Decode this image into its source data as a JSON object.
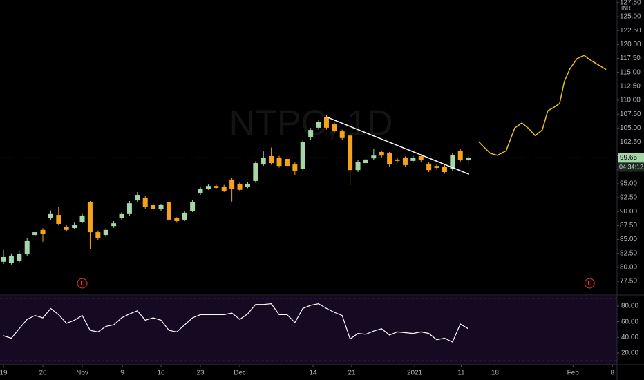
{
  "chart_data": [
    {
      "type": "candlestick",
      "watermark": "NTPC, 1D",
      "currency": "INR",
      "up_color": "#a5d6a7",
      "down_color": "#f7a21b",
      "open": [
        81.0,
        80.85,
        81.1,
        82.35,
        85.8,
        86.7,
        88.8,
        89.4,
        87.3,
        87.05,
        88.15,
        91.65,
        86.3,
        85.8,
        87.4,
        88.8,
        89.55,
        92.0,
        92.5,
        91.25,
        90.4,
        91.75,
        88.8,
        88.55,
        90.15,
        93.25,
        94.1,
        94.6,
        94.5,
        95.75,
        95.0,
        94.5,
        95.5,
        98.45,
        99.95,
        99.7,
        99.45,
        98.45,
        97.7,
        103.4,
        105.05,
        107.0,
        105.65,
        104.4,
        103.65,
        97.45,
        98.7,
        99.55,
        100.7,
        100.45,
        99.35,
        99.6,
        99.1,
        99.95,
        98.6,
        98.2,
        98.1,
        97.6,
        100.95,
        99.2
      ],
      "high": [
        83.1,
        82.5,
        83.0,
        85.2,
        86.6,
        87.0,
        90.2,
        90.8,
        87.6,
        88.0,
        89.6,
        91.9,
        86.6,
        87.0,
        88.3,
        89.9,
        91.9,
        93.5,
        92.8,
        91.5,
        91.4,
        92.0,
        89.0,
        90.0,
        92.1,
        94.4,
        95.0,
        94.9,
        94.8,
        96.0,
        95.3,
        95.3,
        99.0,
        100.8,
        101.5,
        100.0,
        99.8,
        98.8,
        102.8,
        105.0,
        106.5,
        107.3,
        106.0,
        104.7,
        103.9,
        99.3,
        99.6,
        101.2,
        100.9,
        100.7,
        99.6,
        99.9,
        100.0,
        100.3,
        98.9,
        98.5,
        98.4,
        100.5,
        101.3,
        99.9
      ],
      "low": [
        80.6,
        80.5,
        80.9,
        82.1,
        85.5,
        84.6,
        88.5,
        87.5,
        86.4,
        86.8,
        87.9,
        83.3,
        84.9,
        85.5,
        87.1,
        88.5,
        89.3,
        91.7,
        90.5,
        90.1,
        90.1,
        88.3,
        88.0,
        88.3,
        89.9,
        93.0,
        93.9,
        94.0,
        93.5,
        91.8,
        93.6,
        94.2,
        95.2,
        98.2,
        98.4,
        97.9,
        97.9,
        96.6,
        97.4,
        102.9,
        104.7,
        104.7,
        104.1,
        102.9,
        94.75,
        97.1,
        98.4,
        99.2,
        99.7,
        98.1,
        98.8,
        98.0,
        98.8,
        98.9,
        97.1,
        97.5,
        96.8,
        97.3,
        98.9,
        98.5
      ],
      "close": [
        81.85,
        82.1,
        82.45,
        84.7,
        86.3,
        86.05,
        89.55,
        87.8,
        86.7,
        87.65,
        89.3,
        86.3,
        85.2,
        86.7,
        87.9,
        89.55,
        91.5,
        93.0,
        90.8,
        90.4,
        91.15,
        88.55,
        88.3,
        89.8,
        91.75,
        94.0,
        94.6,
        94.25,
        93.75,
        94.1,
        93.9,
        95.0,
        98.7,
        99.6,
        98.7,
        98.2,
        98.2,
        97.35,
        102.45,
        104.65,
        106.15,
        105.05,
        104.4,
        103.2,
        97.45,
        98.95,
        99.35,
        100.05,
        100.05,
        98.45,
        99.1,
        98.35,
        99.7,
        99.2,
        97.45,
        97.85,
        97.1,
        100.2,
        99.2,
        99.65
      ],
      "last_price": 99.65,
      "countdown": "04:34:12",
      "xlim": [
        -0.44,
        77.89
      ],
      "xticks": [
        {
          "value": 0,
          "label": "19"
        },
        {
          "value": 5,
          "label": "26"
        },
        {
          "value": 10,
          "label": "Nov"
        },
        {
          "value": 15.1,
          "label": "9"
        },
        {
          "value": 20,
          "label": "16"
        },
        {
          "value": 25,
          "label": "23"
        },
        {
          "value": 30,
          "label": "Dec"
        },
        {
          "value": 39.3,
          "label": "14"
        },
        {
          "value": 44.2,
          "label": "21"
        },
        {
          "value": 52.2,
          "label": "2021"
        },
        {
          "value": 58.1,
          "label": "11"
        },
        {
          "value": 62.4,
          "label": "18"
        },
        {
          "value": 72.3,
          "label": "Feb"
        },
        {
          "value": 77.3,
          "label": "8"
        }
      ],
      "ylim": [
        75.27,
        127.98
      ],
      "yticks": [
        {
          "value": 77.5,
          "label": "77.50"
        },
        {
          "value": 80,
          "label": "80.00"
        },
        {
          "value": 82.5,
          "label": "82.50"
        },
        {
          "value": 85,
          "label": "85.00"
        },
        {
          "value": 87.5,
          "label": "87.50"
        },
        {
          "value": 90,
          "label": "90.00"
        },
        {
          "value": 92.5,
          "label": "92.50"
        },
        {
          "value": 95,
          "label": "95.00"
        },
        {
          "value": 97.5,
          "label": "97.50"
        },
        {
          "value": 100,
          "label": "100.00"
        },
        {
          "value": 102.5,
          "label": "102.50"
        },
        {
          "value": 105,
          "label": "105.00"
        },
        {
          "value": 107.5,
          "label": "107.50"
        },
        {
          "value": 110,
          "label": "110.00"
        },
        {
          "value": 112.5,
          "label": "112.50"
        },
        {
          "value": 115,
          "label": "115.00"
        },
        {
          "value": 117.5,
          "label": "117.50"
        },
        {
          "value": 120,
          "label": "120.00"
        },
        {
          "value": 122.5,
          "label": "122.50"
        },
        {
          "value": 125,
          "label": "125.00"
        },
        {
          "value": 127.5,
          "label": "127.50"
        }
      ],
      "events": [
        {
          "x": 10,
          "label": "E"
        },
        {
          "x": 74.4,
          "label": "E"
        }
      ],
      "trendline": {
        "color": "#ffffff",
        "points": [
          [
            41,
            107.0
          ],
          [
            59.1,
            96.7
          ]
        ]
      },
      "projection": {
        "color": "#e6c229",
        "points": [
          [
            60.3,
            102.55
          ],
          [
            61.8,
            100.45
          ],
          [
            62.7,
            100.1
          ],
          [
            63.8,
            100.9
          ],
          [
            64.9,
            105.0
          ],
          [
            65.8,
            105.9
          ],
          [
            66.6,
            105.0
          ],
          [
            67.5,
            103.65
          ],
          [
            68.4,
            104.65
          ],
          [
            69.1,
            108.1
          ],
          [
            69.9,
            108.75
          ],
          [
            70.6,
            109.4
          ],
          [
            71.2,
            113.35
          ],
          [
            71.9,
            115.6
          ],
          [
            72.8,
            117.45
          ],
          [
            73.7,
            118.05
          ],
          [
            74.6,
            117.1
          ],
          [
            76.5,
            115.5
          ]
        ]
      }
    },
    {
      "type": "line",
      "color": "#ffffff",
      "values": [
        42,
        39,
        51,
        63,
        68,
        65,
        77,
        69,
        58,
        62,
        68,
        49,
        47,
        54,
        56,
        65,
        70,
        74,
        62,
        65,
        62,
        49,
        47,
        56,
        65,
        69,
        69,
        69,
        69,
        71,
        63,
        70,
        82,
        82,
        83,
        69,
        69,
        59,
        77,
        81,
        83,
        77,
        72,
        68,
        38,
        45,
        44,
        48,
        51,
        43,
        47,
        46,
        45,
        47,
        45,
        37,
        39,
        34,
        57,
        51
      ],
      "background": "#150a22",
      "bands": [
        90,
        10
      ],
      "ylim": [
        5,
        93.2
      ],
      "yticks": [
        {
          "value": 20,
          "label": "20.00"
        },
        {
          "value": 40,
          "label": "40.00"
        },
        {
          "value": 60,
          "label": "60.00"
        },
        {
          "value": 80,
          "label": "80.00"
        }
      ]
    }
  ]
}
